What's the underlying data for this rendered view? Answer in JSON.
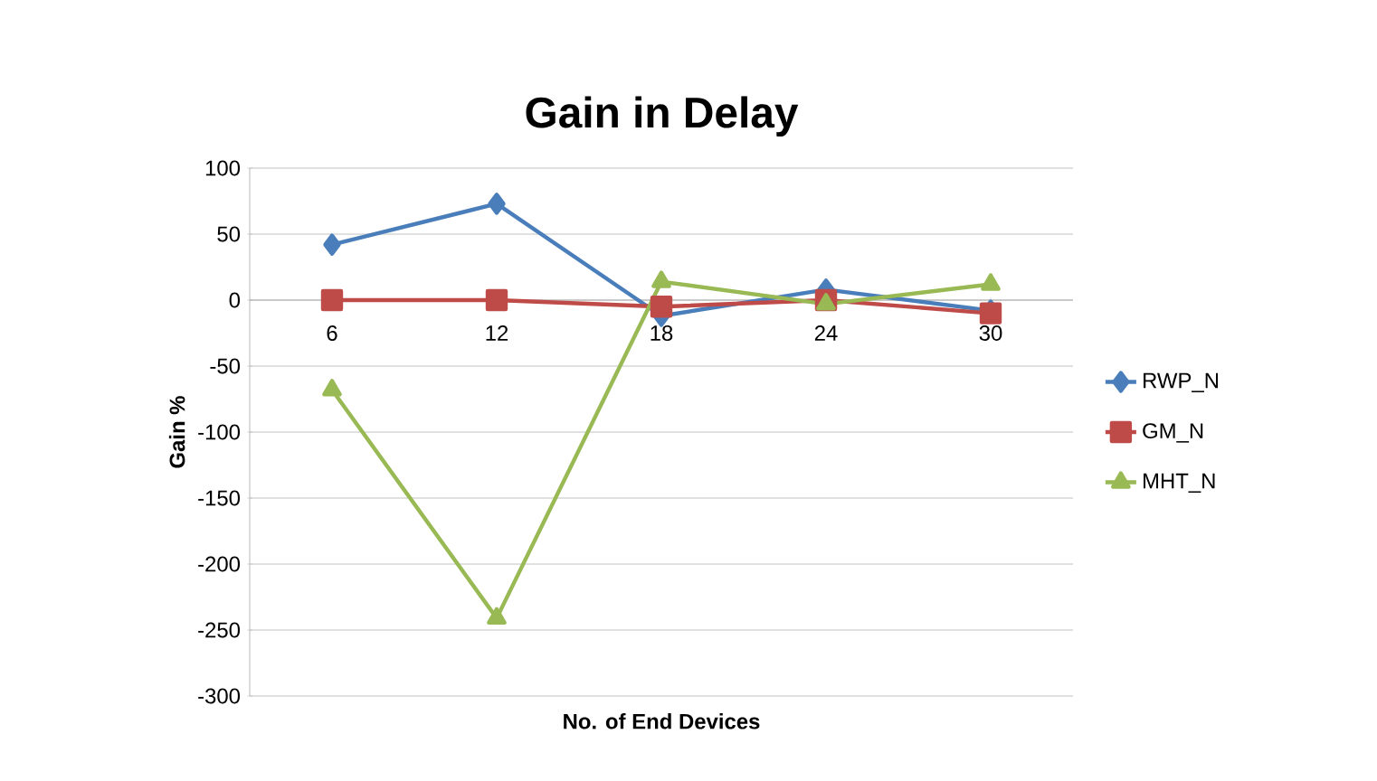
{
  "chart_data": {
    "type": "line",
    "title": "Gain in Delay",
    "xlabel": "No. of End Devices",
    "ylabel": "Gain %",
    "categories": [
      "6",
      "12",
      "18",
      "24",
      "30"
    ],
    "series": [
      {
        "name": "RWP_N",
        "color": "#4a7ebb",
        "marker": "diamond",
        "values": [
          42,
          73,
          -12,
          8,
          -8
        ]
      },
      {
        "name": "GM_N",
        "color": "#be4b48",
        "marker": "square",
        "values": [
          0,
          0,
          -5,
          0,
          -10
        ]
      },
      {
        "name": "MHT_N",
        "color": "#98b954",
        "marker": "triangle",
        "values": [
          -68,
          -241,
          14,
          -3,
          12
        ]
      }
    ],
    "ylim": [
      -300,
      100
    ],
    "yticks": [
      -300,
      -250,
      -200,
      -150,
      -100,
      -50,
      0,
      50,
      100
    ],
    "grid": "y",
    "legend": "right"
  }
}
